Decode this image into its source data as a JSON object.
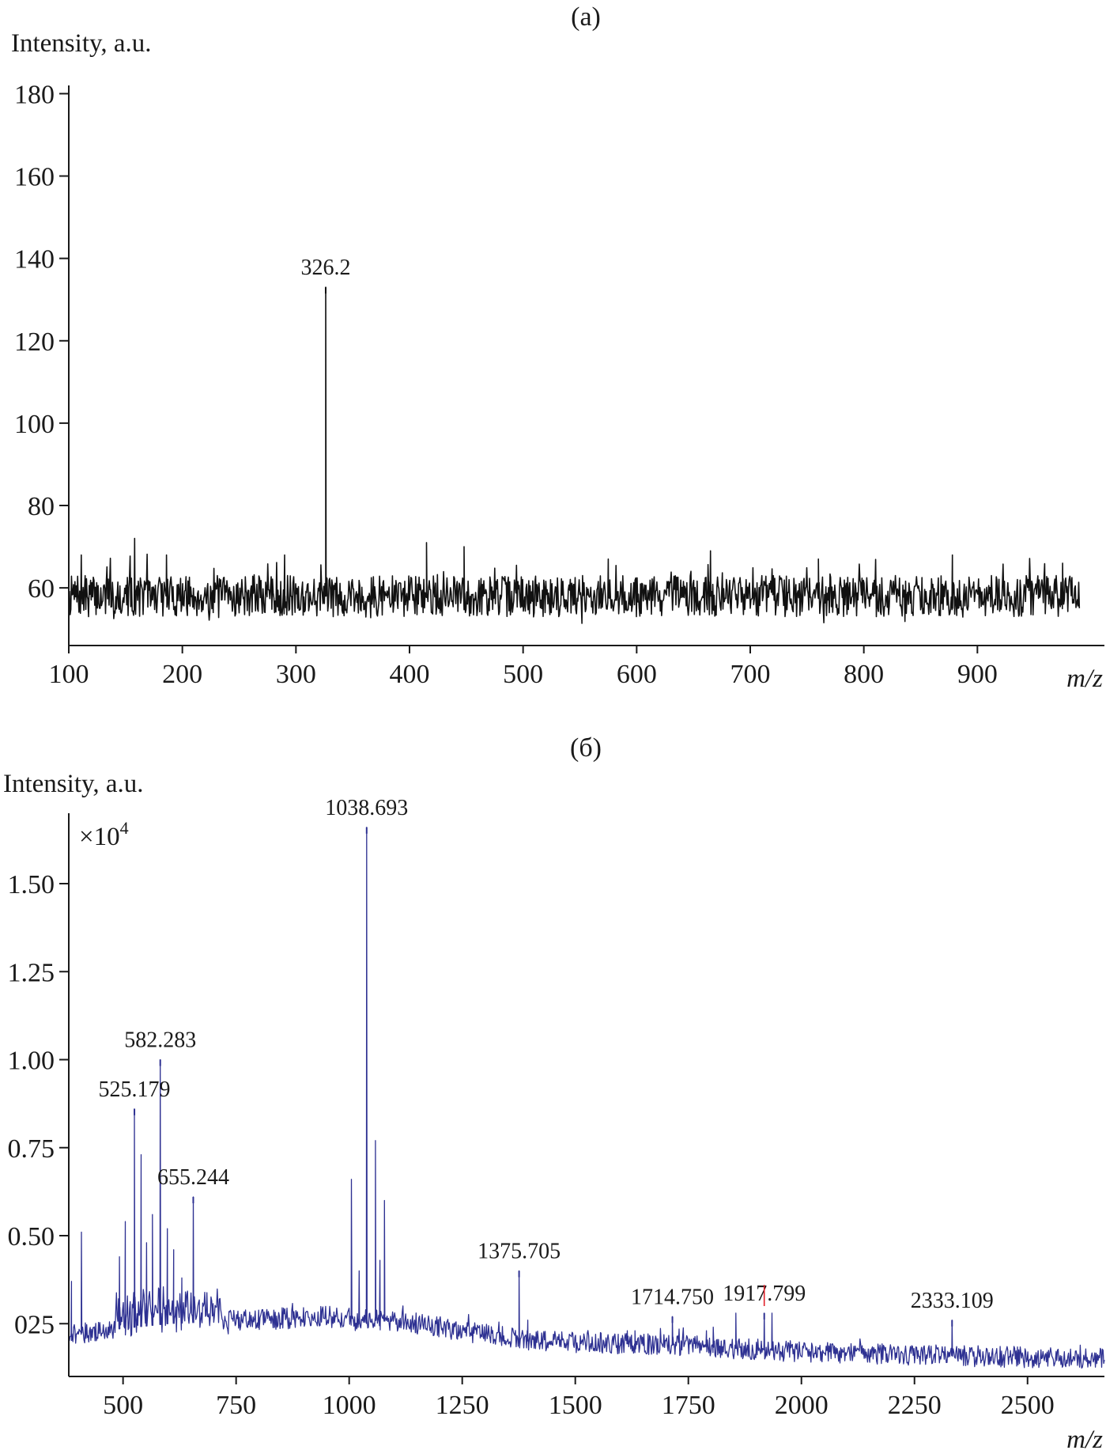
{
  "chart_data": [
    {
      "panel": "(a)",
      "type": "line",
      "title": "(a)",
      "ylabel": "Intensity, a.u.",
      "xlabel": "m/z",
      "xlim": [
        100,
        1000
      ],
      "ylim": [
        46,
        182
      ],
      "xticks": [
        "100",
        "200",
        "300",
        "400",
        "500",
        "600",
        "700",
        "800",
        "900"
      ],
      "yticks": [
        "60",
        "80",
        "100",
        "120",
        "140",
        "160",
        "180"
      ],
      "color": "#111111",
      "baseline": 58,
      "noise_amplitude": 5,
      "peaks": [
        {
          "x": 326.2,
          "y": 133,
          "label": "326.2"
        }
      ],
      "spikes": [
        {
          "x": 111,
          "y": 68
        },
        {
          "x": 158,
          "y": 72
        },
        {
          "x": 186,
          "y": 68
        },
        {
          "x": 290,
          "y": 68
        },
        {
          "x": 415,
          "y": 71
        },
        {
          "x": 448,
          "y": 70
        },
        {
          "x": 575,
          "y": 67
        },
        {
          "x": 665,
          "y": 69
        },
        {
          "x": 760,
          "y": 67
        },
        {
          "x": 878,
          "y": 68
        },
        {
          "x": 975,
          "y": 66
        }
      ]
    },
    {
      "panel": "(б)",
      "type": "line",
      "title": "(б)",
      "ylabel": "Intensity, a.u.",
      "xlabel": "m/z",
      "y_multiplier": "×10",
      "y_multiplier_exp": "4",
      "xlim": [
        380,
        2670
      ],
      "ylim": [
        0.1,
        1.7
      ],
      "xticks": [
        "500",
        "750",
        "1000",
        "1250",
        "1500",
        "1750",
        "2000",
        "2250",
        "2500"
      ],
      "yticks": [
        "025",
        "0.50",
        "0.75",
        "1.00",
        "1.25",
        "1.50"
      ],
      "color": "#2e3192",
      "marker_color": "#e0202a",
      "baseline": [
        {
          "x": 380,
          "y": 0.22
        },
        {
          "x": 600,
          "y": 0.25
        },
        {
          "x": 950,
          "y": 0.27
        },
        {
          "x": 1150,
          "y": 0.25
        },
        {
          "x": 1400,
          "y": 0.2
        },
        {
          "x": 1700,
          "y": 0.19
        },
        {
          "x": 2000,
          "y": 0.17
        },
        {
          "x": 2300,
          "y": 0.16
        },
        {
          "x": 2670,
          "y": 0.15
        }
      ],
      "noise_amplitude": 0.03,
      "peaks": [
        {
          "x": 525.179,
          "y": 0.86,
          "label": "525.179"
        },
        {
          "x": 582.283,
          "y": 1.0,
          "label": "582.283"
        },
        {
          "x": 655.244,
          "y": 0.61,
          "label": "655.244"
        },
        {
          "x": 1038.693,
          "y": 1.66,
          "label": "1038.693"
        },
        {
          "x": 1375.705,
          "y": 0.4,
          "label": "1375.705"
        },
        {
          "x": 1714.75,
          "y": 0.27,
          "label": "1714.750"
        },
        {
          "x": 1917.799,
          "y": 0.28,
          "label": "1917.799"
        },
        {
          "x": 2333.109,
          "y": 0.26,
          "label": "2333.109"
        }
      ],
      "minor_peaks": [
        {
          "x": 386,
          "y": 0.37
        },
        {
          "x": 408,
          "y": 0.51
        },
        {
          "x": 492,
          "y": 0.44
        },
        {
          "x": 505,
          "y": 0.54
        },
        {
          "x": 540,
          "y": 0.73
        },
        {
          "x": 552,
          "y": 0.48
        },
        {
          "x": 565,
          "y": 0.56
        },
        {
          "x": 598,
          "y": 0.52
        },
        {
          "x": 612,
          "y": 0.46
        },
        {
          "x": 630,
          "y": 0.38
        },
        {
          "x": 1005,
          "y": 0.66
        },
        {
          "x": 1022,
          "y": 0.4
        },
        {
          "x": 1058,
          "y": 0.77
        },
        {
          "x": 1068,
          "y": 0.43
        },
        {
          "x": 1078,
          "y": 0.6
        },
        {
          "x": 1395,
          "y": 0.26
        },
        {
          "x": 1595,
          "y": 0.22
        },
        {
          "x": 1615,
          "y": 0.23
        },
        {
          "x": 1632,
          "y": 0.23
        },
        {
          "x": 1790,
          "y": 0.23
        },
        {
          "x": 1805,
          "y": 0.24
        },
        {
          "x": 1855,
          "y": 0.28
        },
        {
          "x": 1935,
          "y": 0.28
        }
      ],
      "marker": {
        "x": 1917.799,
        "y0": 0.3,
        "y1": 0.36
      }
    }
  ]
}
